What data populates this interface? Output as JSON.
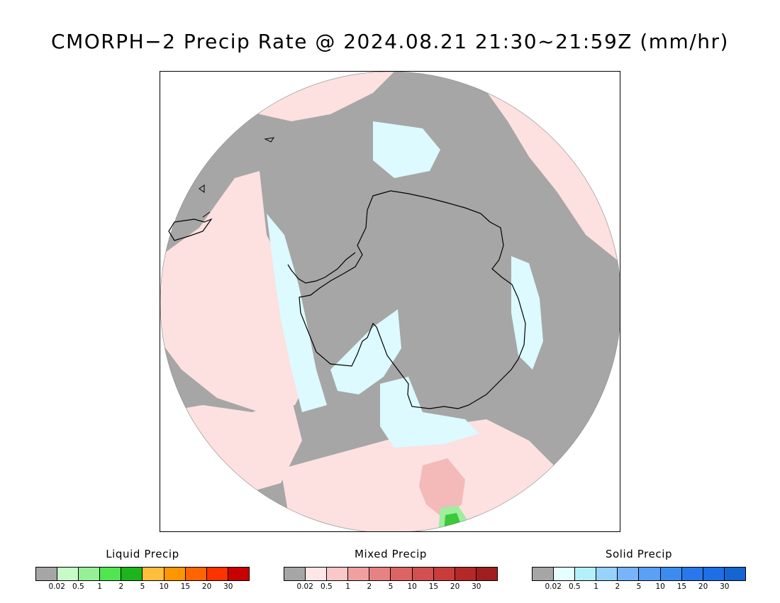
{
  "title": "CMORPH−2 Precip Rate @ 2024.08.21 21:30~21:59Z (mm/hr)",
  "map": {
    "projection": "south polar stereographic",
    "colors": {
      "no_precip": "#a6a6a6",
      "mixed_light": "#fde0e0",
      "solid_light": "#dcfaff",
      "mixed_mod": "#f4b9b9",
      "liquid_light": "#9cf09c",
      "liquid_mod": "#3cc83c",
      "liquid_heavy": "#1aa01a"
    }
  },
  "legends": [
    {
      "title": "Liquid Precip",
      "ticks": [
        "0.02",
        "0.5",
        "1",
        "2",
        "5",
        "10",
        "15",
        "20",
        "30"
      ],
      "colors": [
        "#a6a6a6",
        "#c8fac8",
        "#96f096",
        "#50e650",
        "#1eb41e",
        "#ffbe3c",
        "#ff9600",
        "#ff6400",
        "#ff3200",
        "#c80000"
      ]
    },
    {
      "title": "Mixed Precip",
      "ticks": [
        "0.02",
        "0.5",
        "1",
        "2",
        "5",
        "10",
        "15",
        "20",
        "30"
      ],
      "colors": [
        "#a6a6a6",
        "#ffe6e6",
        "#fac8c8",
        "#f0a0a0",
        "#e68282",
        "#dc6464",
        "#d25050",
        "#c83c3c",
        "#b42828",
        "#a01e1e"
      ]
    },
    {
      "title": "Solid Precip",
      "ticks": [
        "0.02",
        "0.5",
        "1",
        "2",
        "5",
        "10",
        "15",
        "20",
        "30"
      ],
      "colors": [
        "#a6a6a6",
        "#e6ffff",
        "#b4f0fa",
        "#96d2fa",
        "#78b4fa",
        "#5aa0f5",
        "#3c8cf0",
        "#2878eb",
        "#1e6ee6",
        "#1464d2"
      ]
    }
  ]
}
